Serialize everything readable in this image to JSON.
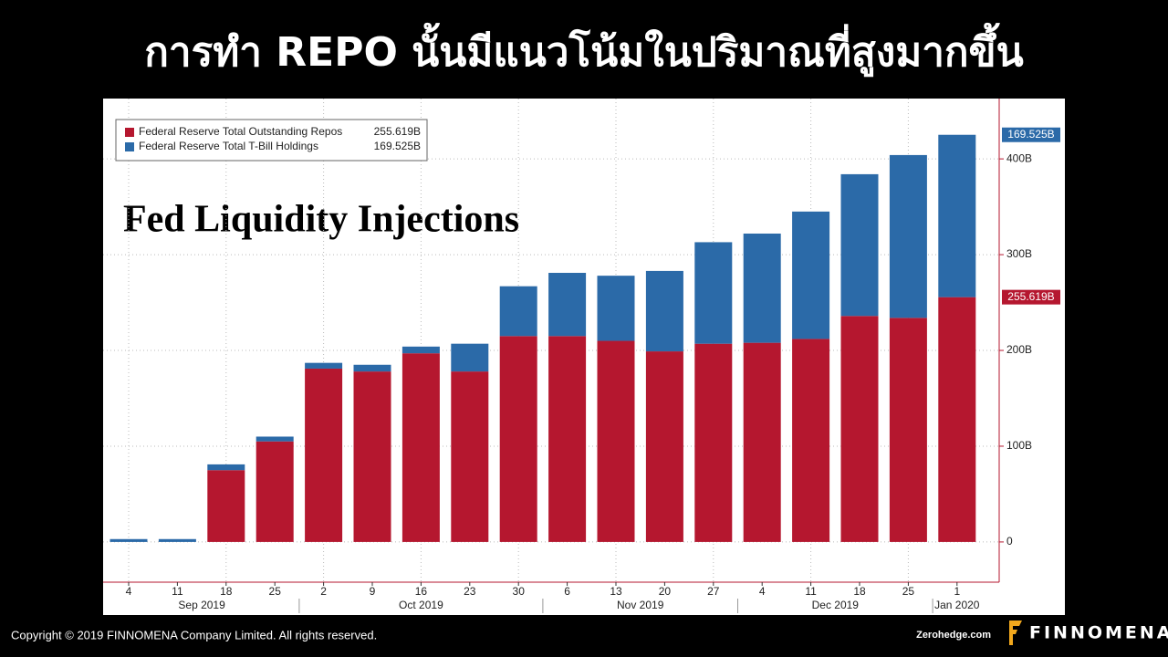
{
  "slide_title": "การทำ REPO นั้นมีแนวโน้มในปริมาณที่สูงมากขึ้น",
  "chart_data": {
    "type": "stacked_bar",
    "title": "Fed Liquidity Injections",
    "categories": [
      "4",
      "11",
      "18",
      "25",
      "2",
      "9",
      "16",
      "23",
      "30",
      "6",
      "13",
      "20",
      "27",
      "4",
      "11",
      "18",
      "25",
      "1"
    ],
    "x_groups": [
      {
        "label": "Sep 2019",
        "first": 0,
        "last": 3
      },
      {
        "label": "Oct 2019",
        "first": 4,
        "last": 8
      },
      {
        "label": "Nov 2019",
        "first": 9,
        "last": 12
      },
      {
        "label": "Dec 2019",
        "first": 13,
        "last": 16
      },
      {
        "label": "Jan 2020",
        "first": 17,
        "last": 17
      }
    ],
    "series": [
      {
        "name": "Federal Reserve Total Outstanding Repos",
        "color": "#b5172f",
        "values": [
          0,
          0,
          75,
          105,
          181,
          178,
          197,
          178,
          215,
          215,
          210,
          199,
          207,
          208,
          212,
          236,
          234,
          255.619
        ],
        "value_labels": [
          null,
          null,
          null,
          null,
          null,
          null,
          null,
          null,
          null,
          null,
          null,
          null,
          null,
          null,
          null,
          null,
          null,
          "255.619B"
        ]
      },
      {
        "name": "Federal Reserve Total T-Bill Holdings",
        "color": "#2b6aa8",
        "values": [
          3,
          3,
          6,
          5,
          6,
          7,
          7,
          29,
          52,
          66,
          68,
          84,
          106,
          114,
          133,
          148,
          170,
          169.525
        ],
        "value_labels": [
          null,
          null,
          null,
          null,
          null,
          null,
          null,
          null,
          null,
          null,
          null,
          null,
          null,
          null,
          null,
          null,
          null,
          "169.525B"
        ]
      }
    ],
    "ylim": [
      -42,
      463
    ],
    "yticks": [
      0,
      {
        "value": 100,
        "label": "100B"
      },
      {
        "value": 200,
        "label": "200B"
      },
      {
        "value": 300,
        "label": "300B"
      },
      {
        "value": 400,
        "label": "400B"
      }
    ],
    "grid": true,
    "legend": "upper left",
    "y_axis_side": "right"
  },
  "footer": {
    "copyright": "Copyright © 2019 FINNOMENA Company Limited. All rights reserved.",
    "source": "Zerohedge.com",
    "brand": "FINNOMENA"
  }
}
